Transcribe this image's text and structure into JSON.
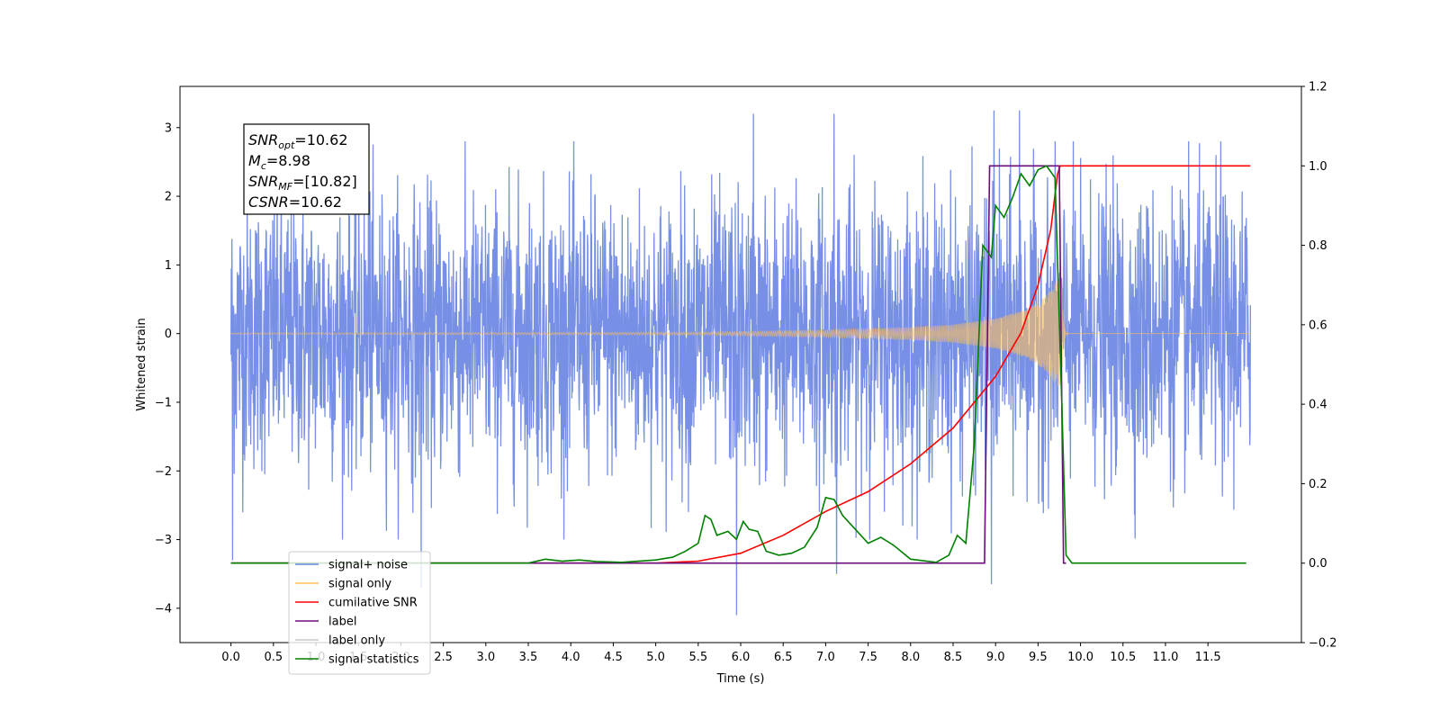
{
  "chart_data": {
    "type": "line",
    "xlabel": "Time (s)",
    "ylabel_left": "Whitened strain",
    "ylabel_right": "",
    "xlim": [
      -0.6,
      12.6
    ],
    "ylim_left": [
      -4.5,
      3.6
    ],
    "ylim_right": [
      -0.2,
      1.2
    ],
    "x_ticks": [
      0.0,
      0.5,
      1.0,
      1.5,
      2.0,
      2.5,
      3.0,
      3.5,
      4.0,
      4.5,
      5.0,
      5.5,
      6.0,
      6.5,
      7.0,
      7.5,
      8.0,
      8.5,
      9.0,
      9.5,
      10.0,
      10.5,
      11.0,
      11.5
    ],
    "x_tick_labels": [
      "0.0",
      "0.5",
      "1.0",
      "1.5",
      "2.0",
      "2.5",
      "3.0",
      "3.5",
      "4.0",
      "4.5",
      "5.0",
      "5.5",
      "6.0",
      "6.5",
      "7.0",
      "7.5",
      "8.0",
      "8.5",
      "9.0",
      "9.5",
      "10.0",
      "10.5",
      "11.0",
      "11.5"
    ],
    "y_ticks_left": [
      -4,
      -3,
      -2,
      -1,
      0,
      1,
      2,
      3
    ],
    "y_tick_labels_left": [
      "−4",
      "−3",
      "−2",
      "−1",
      "0",
      "1",
      "2",
      "3"
    ],
    "y_ticks_right": [
      -0.2,
      0.0,
      0.2,
      0.4,
      0.6,
      0.8,
      1.0,
      1.2
    ],
    "y_tick_labels_right": [
      "−0.2",
      "0.0",
      "0.2",
      "0.4",
      "0.6",
      "0.8",
      "1.0",
      "1.2"
    ],
    "grid": false,
    "legend_position": "lower-left",
    "series": [
      {
        "name": "signal+ noise",
        "axis": "left",
        "color": "#6b87e3",
        "kind": "noise-band",
        "x_range": [
          0.0,
          12.0
        ],
        "typical_amplitude": 1.6,
        "peaks": [
          {
            "x": 0.02,
            "y": -3.3
          },
          {
            "x": 1.62,
            "y": 3.0
          },
          {
            "x": 2.24,
            "y": -3.7
          },
          {
            "x": 5.95,
            "y": -4.1
          },
          {
            "x": 6.15,
            "y": 3.2
          },
          {
            "x": 7.1,
            "y": 3.2
          },
          {
            "x": 7.13,
            "y": -3.5
          },
          {
            "x": 8.98,
            "y": 3.25
          },
          {
            "x": 8.95,
            "y": -3.65
          },
          {
            "x": 9.28,
            "y": 3.25
          },
          {
            "x": 11.65,
            "y": 2.8
          }
        ]
      },
      {
        "name": "signal only",
        "axis": "left",
        "color": "#ffbf5e",
        "kind": "chirp",
        "x_range": [
          0.0,
          12.0
        ],
        "merger_time": 9.78,
        "envelope": [
          {
            "x": 0.0,
            "y": 0.008
          },
          {
            "x": 5.5,
            "y": 0.02
          },
          {
            "x": 7.0,
            "y": 0.05
          },
          {
            "x": 8.0,
            "y": 0.09
          },
          {
            "x": 8.5,
            "y": 0.13
          },
          {
            "x": 9.0,
            "y": 0.22
          },
          {
            "x": 9.3,
            "y": 0.33
          },
          {
            "x": 9.5,
            "y": 0.45
          },
          {
            "x": 9.65,
            "y": 0.62
          },
          {
            "x": 9.72,
            "y": 0.78
          }
        ]
      },
      {
        "name": "cumilative SNR",
        "axis": "right",
        "color": "#ff0000",
        "kind": "line",
        "points": [
          {
            "x": 0.0,
            "y": 0.0
          },
          {
            "x": 5.0,
            "y": 0.0
          },
          {
            "x": 5.5,
            "y": 0.005
          },
          {
            "x": 6.0,
            "y": 0.025
          },
          {
            "x": 6.5,
            "y": 0.07
          },
          {
            "x": 7.0,
            "y": 0.13
          },
          {
            "x": 7.5,
            "y": 0.18
          },
          {
            "x": 8.0,
            "y": 0.25
          },
          {
            "x": 8.5,
            "y": 0.34
          },
          {
            "x": 9.0,
            "y": 0.47
          },
          {
            "x": 9.3,
            "y": 0.58
          },
          {
            "x": 9.5,
            "y": 0.7
          },
          {
            "x": 9.65,
            "y": 0.84
          },
          {
            "x": 9.73,
            "y": 0.98
          },
          {
            "x": 9.76,
            "y": 1.0
          },
          {
            "x": 12.0,
            "y": 1.0
          }
        ]
      },
      {
        "name": "label",
        "axis": "right",
        "color": "#6a0f7a",
        "kind": "line",
        "points": [
          {
            "x": 0.0,
            "y": 0.0
          },
          {
            "x": 8.87,
            "y": 0.0
          },
          {
            "x": 8.93,
            "y": 1.0
          },
          {
            "x": 9.75,
            "y": 1.0
          },
          {
            "x": 9.8,
            "y": 0.0
          },
          {
            "x": 9.83,
            "y": 0.0
          }
        ]
      },
      {
        "name": "label only",
        "axis": "right",
        "color": "#c8c8c8",
        "kind": "legend-only",
        "points": []
      },
      {
        "name": "signal statistics",
        "axis": "right",
        "color": "#008000",
        "kind": "line",
        "points": [
          {
            "x": 0.0,
            "y": 0.0
          },
          {
            "x": 3.5,
            "y": 0.0
          },
          {
            "x": 3.7,
            "y": 0.01
          },
          {
            "x": 3.9,
            "y": 0.005
          },
          {
            "x": 4.1,
            "y": 0.008
          },
          {
            "x": 4.3,
            "y": 0.004
          },
          {
            "x": 4.6,
            "y": 0.002
          },
          {
            "x": 5.0,
            "y": 0.008
          },
          {
            "x": 5.2,
            "y": 0.015
          },
          {
            "x": 5.35,
            "y": 0.03
          },
          {
            "x": 5.5,
            "y": 0.05
          },
          {
            "x": 5.58,
            "y": 0.12
          },
          {
            "x": 5.65,
            "y": 0.11
          },
          {
            "x": 5.72,
            "y": 0.07
          },
          {
            "x": 5.85,
            "y": 0.08
          },
          {
            "x": 5.95,
            "y": 0.06
          },
          {
            "x": 6.03,
            "y": 0.105
          },
          {
            "x": 6.1,
            "y": 0.085
          },
          {
            "x": 6.2,
            "y": 0.08
          },
          {
            "x": 6.3,
            "y": 0.03
          },
          {
            "x": 6.45,
            "y": 0.02
          },
          {
            "x": 6.6,
            "y": 0.025
          },
          {
            "x": 6.75,
            "y": 0.04
          },
          {
            "x": 6.9,
            "y": 0.09
          },
          {
            "x": 7.0,
            "y": 0.165
          },
          {
            "x": 7.1,
            "y": 0.16
          },
          {
            "x": 7.2,
            "y": 0.12
          },
          {
            "x": 7.35,
            "y": 0.085
          },
          {
            "x": 7.5,
            "y": 0.05
          },
          {
            "x": 7.65,
            "y": 0.065
          },
          {
            "x": 7.8,
            "y": 0.045
          },
          {
            "x": 8.0,
            "y": 0.01
          },
          {
            "x": 8.3,
            "y": 0.002
          },
          {
            "x": 8.45,
            "y": 0.02
          },
          {
            "x": 8.55,
            "y": 0.07
          },
          {
            "x": 8.65,
            "y": 0.05
          },
          {
            "x": 8.75,
            "y": 0.3
          },
          {
            "x": 8.85,
            "y": 0.8
          },
          {
            "x": 8.95,
            "y": 0.77
          },
          {
            "x": 9.0,
            "y": 0.9
          },
          {
            "x": 9.1,
            "y": 0.87
          },
          {
            "x": 9.2,
            "y": 0.92
          },
          {
            "x": 9.3,
            "y": 0.98
          },
          {
            "x": 9.4,
            "y": 0.95
          },
          {
            "x": 9.5,
            "y": 0.99
          },
          {
            "x": 9.6,
            "y": 1.0
          },
          {
            "x": 9.7,
            "y": 0.97
          },
          {
            "x": 9.78,
            "y": 0.4
          },
          {
            "x": 9.83,
            "y": 0.02
          },
          {
            "x": 9.9,
            "y": 0.0
          },
          {
            "x": 11.95,
            "y": 0.0
          }
        ]
      }
    ],
    "annotation": {
      "lines": [
        {
          "var": "SNR",
          "sub": "opt",
          "value": "=10.62"
        },
        {
          "var": "M",
          "sub": "c",
          "value": "=8.98"
        },
        {
          "var": "SNR",
          "sub": "MF",
          "value": "=[10.82]"
        },
        {
          "var": "CSNR",
          "sub": "",
          "value": "=10.62"
        }
      ]
    }
  }
}
